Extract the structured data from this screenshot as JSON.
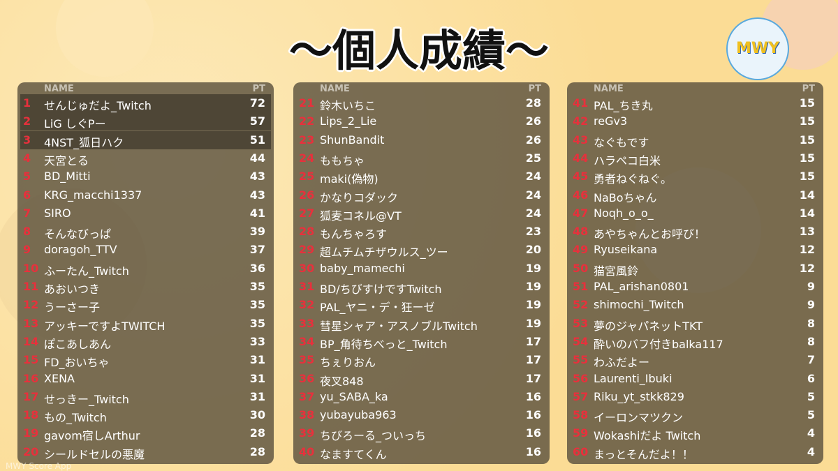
{
  "title": "〜個人成績〜",
  "logo": "MWY",
  "footer": "MWY Score App",
  "tables": [
    {
      "header": {
        "name": "NAME",
        "pt": "PT"
      },
      "rows": [
        [
          1,
          "せんじゅだよ_Twitch",
          72
        ],
        [
          2,
          "LiG しぐPー",
          57
        ],
        [
          3,
          "4NST_狐日ハク",
          51
        ],
        [
          4,
          "天宮とる",
          44
        ],
        [
          5,
          "BD_Mitti",
          43
        ],
        [
          6,
          "KRG_macchi1337",
          43
        ],
        [
          7,
          "SIRO",
          41
        ],
        [
          8,
          "そんなびっぱ",
          39
        ],
        [
          9,
          "doragoh_TTV",
          37
        ],
        [
          10,
          "ふーたん_Twitch",
          36
        ],
        [
          11,
          "あおいつき",
          35
        ],
        [
          12,
          "うーさー子",
          35
        ],
        [
          13,
          "アッキーですよTWITCH",
          35
        ],
        [
          14,
          "ぽこあしあん",
          33
        ],
        [
          15,
          "FD_おいちゃ",
          31
        ],
        [
          16,
          "XENA",
          31
        ],
        [
          17,
          "せっきー_Twitch",
          31
        ],
        [
          18,
          "もの_Twitch",
          30
        ],
        [
          19,
          "gavom宿しArthur",
          28
        ],
        [
          20,
          "シールドセルの悪魔",
          28
        ]
      ]
    },
    {
      "header": {
        "name": "NAME",
        "pt": "PT"
      },
      "rows": [
        [
          21,
          "鈴木いちこ",
          28
        ],
        [
          22,
          "Lips_2_Lie",
          26
        ],
        [
          23,
          "ShunBandit",
          26
        ],
        [
          24,
          "ももちゃ",
          25
        ],
        [
          25,
          "maki(偽物)",
          24
        ],
        [
          26,
          "かなりコダック",
          24
        ],
        [
          27,
          "狐麦コネル@VT",
          24
        ],
        [
          28,
          "もんちゃろす",
          23
        ],
        [
          29,
          "超ムチムチザウルス_ツー",
          20
        ],
        [
          30,
          "baby_mamechi",
          19
        ],
        [
          31,
          "BD/ちびすけですTwitch",
          19
        ],
        [
          32,
          "PAL_ヤニ・デ・狂ーゼ",
          19
        ],
        [
          33,
          "彗星シャア・アスノブルTwitch",
          19
        ],
        [
          34,
          "BP_角待ちべっと_Twitch",
          17
        ],
        [
          35,
          "ちぇりおん",
          17
        ],
        [
          36,
          "夜叉848",
          17
        ],
        [
          37,
          "yu_SABA_ka",
          16
        ],
        [
          38,
          "yubayuba963",
          16
        ],
        [
          39,
          "ちびろーる_ついっち",
          16
        ],
        [
          40,
          "なますてくん",
          16
        ]
      ]
    },
    {
      "header": {
        "name": "NAME",
        "pt": "PT"
      },
      "rows": [
        [
          41,
          "PAL_ちき丸",
          15
        ],
        [
          42,
          "reGv3",
          15
        ],
        [
          43,
          "なぐもです",
          15
        ],
        [
          44,
          "ハラペコ白米",
          15
        ],
        [
          45,
          "勇者ねぐねぐ。",
          15
        ],
        [
          46,
          "NaBoちゃん",
          14
        ],
        [
          47,
          "Noqh_o_o_",
          14
        ],
        [
          48,
          "あやちゃんとお呼び！",
          13
        ],
        [
          49,
          "Ryuseikana",
          12
        ],
        [
          50,
          "猫宮風鈴",
          12
        ],
        [
          51,
          "PAL_arishan0801",
          9
        ],
        [
          52,
          "shimochi_Twitch",
          9
        ],
        [
          53,
          "夢のジャパネットTKT",
          8
        ],
        [
          54,
          "酔いのバフ付きbalka117",
          8
        ],
        [
          55,
          "わふだよー",
          7
        ],
        [
          56,
          "Laurenti_Ibuki",
          6
        ],
        [
          57,
          "Riku_yt_stkk829",
          5
        ],
        [
          58,
          "イーロンマツクン",
          5
        ],
        [
          59,
          "Wokashiだよ Twitch",
          4
        ],
        [
          60,
          "まっとそんだよ！！",
          4
        ]
      ]
    }
  ]
}
